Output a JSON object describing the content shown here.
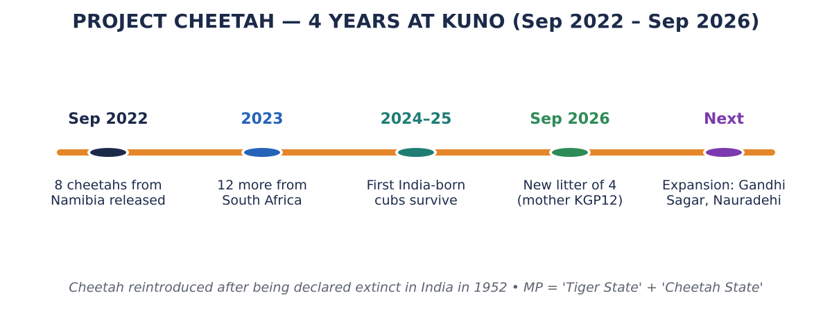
{
  "title": "PROJECT CHEETAH — 4 YEARS AT KUNO (Sep 2022 – Sep 2026)",
  "colors": {
    "timeline": "#e5862a",
    "title": "#1c2a4a",
    "footer": "#5d6470"
  },
  "milestones": [
    {
      "date": "Sep 2022",
      "color": "#1c2a4a",
      "desc_line1": "8 cheetahs from",
      "desc_line2": "Namibia released"
    },
    {
      "date": "2023",
      "color": "#2563b8",
      "desc_line1": "12 more from",
      "desc_line2": "South Africa"
    },
    {
      "date": "2024–25",
      "color": "#1f7d76",
      "desc_line1": "First India-born",
      "desc_line2": "cubs survive"
    },
    {
      "date": "Sep 2026",
      "color": "#2e8b57",
      "desc_line1": "New litter of 4",
      "desc_line2": "(mother KGP12)"
    },
    {
      "date": "Next",
      "color": "#7b3aad",
      "desc_line1": "Expansion: Gandhi",
      "desc_line2": "Sagar, Nauradehi"
    }
  ],
  "footer": "Cheetah reintroduced after being declared extinct in India in 1952  •  MP = 'Tiger State' + 'Cheetah State'"
}
